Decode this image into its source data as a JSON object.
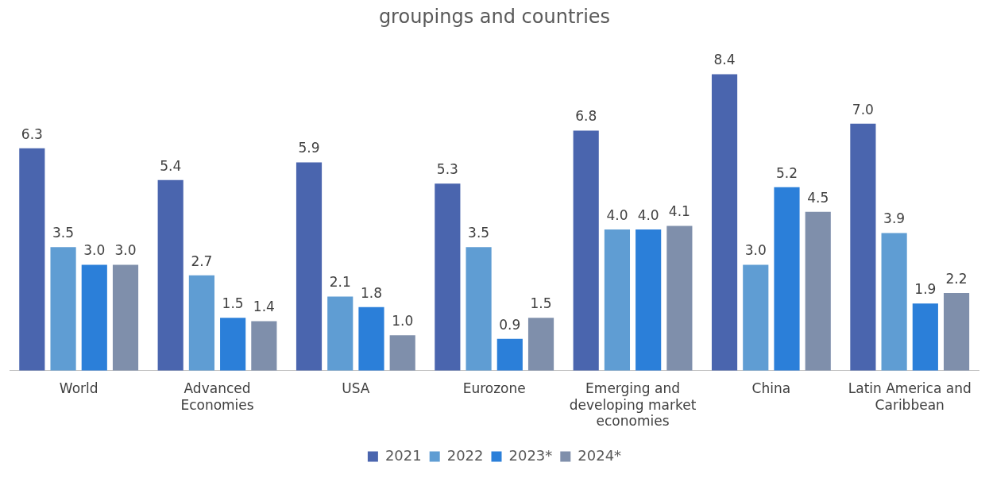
{
  "chart_data": {
    "type": "bar",
    "title": "groupings and countries",
    "categories": [
      "World",
      "Advanced Economies",
      "USA",
      "Eurozone",
      "Emerging and developing market economies",
      "China",
      "Latin America and Caribbean"
    ],
    "series": [
      {
        "name": "2021",
        "color": "#4a65ae",
        "values": [
          6.3,
          5.4,
          5.9,
          5.3,
          6.8,
          8.4,
          7.0
        ],
        "value_labels": [
          "6.3",
          "5.4",
          "5.9",
          "5.3",
          "6.8",
          "8.4",
          "7.0"
        ]
      },
      {
        "name": "2022",
        "color": "#5f9dd3",
        "values": [
          3.5,
          2.7,
          2.1,
          3.5,
          4.0,
          3.0,
          3.9
        ],
        "value_labels": [
          "3.5",
          "2.7",
          "2.1",
          "3.5",
          "4.0",
          "3.0",
          "3.9"
        ]
      },
      {
        "name": "2023*",
        "color": "#2b7fd9",
        "values": [
          3.0,
          1.5,
          1.8,
          0.9,
          4.0,
          5.2,
          1.9
        ],
        "value_labels": [
          "3.0",
          "1.5",
          "1.8",
          "0.9",
          "4.0",
          "5.2",
          "1.9"
        ]
      },
      {
        "name": "2024*",
        "color": "#7f8fab",
        "values": [
          3.0,
          1.4,
          1.0,
          1.5,
          4.1,
          4.5,
          2.2
        ],
        "value_labels": [
          "3.0",
          "1.4",
          "1.0",
          "1.5",
          "4.1",
          "4.5",
          "2.2"
        ]
      }
    ],
    "grid": false,
    "legend": "bottom"
  }
}
